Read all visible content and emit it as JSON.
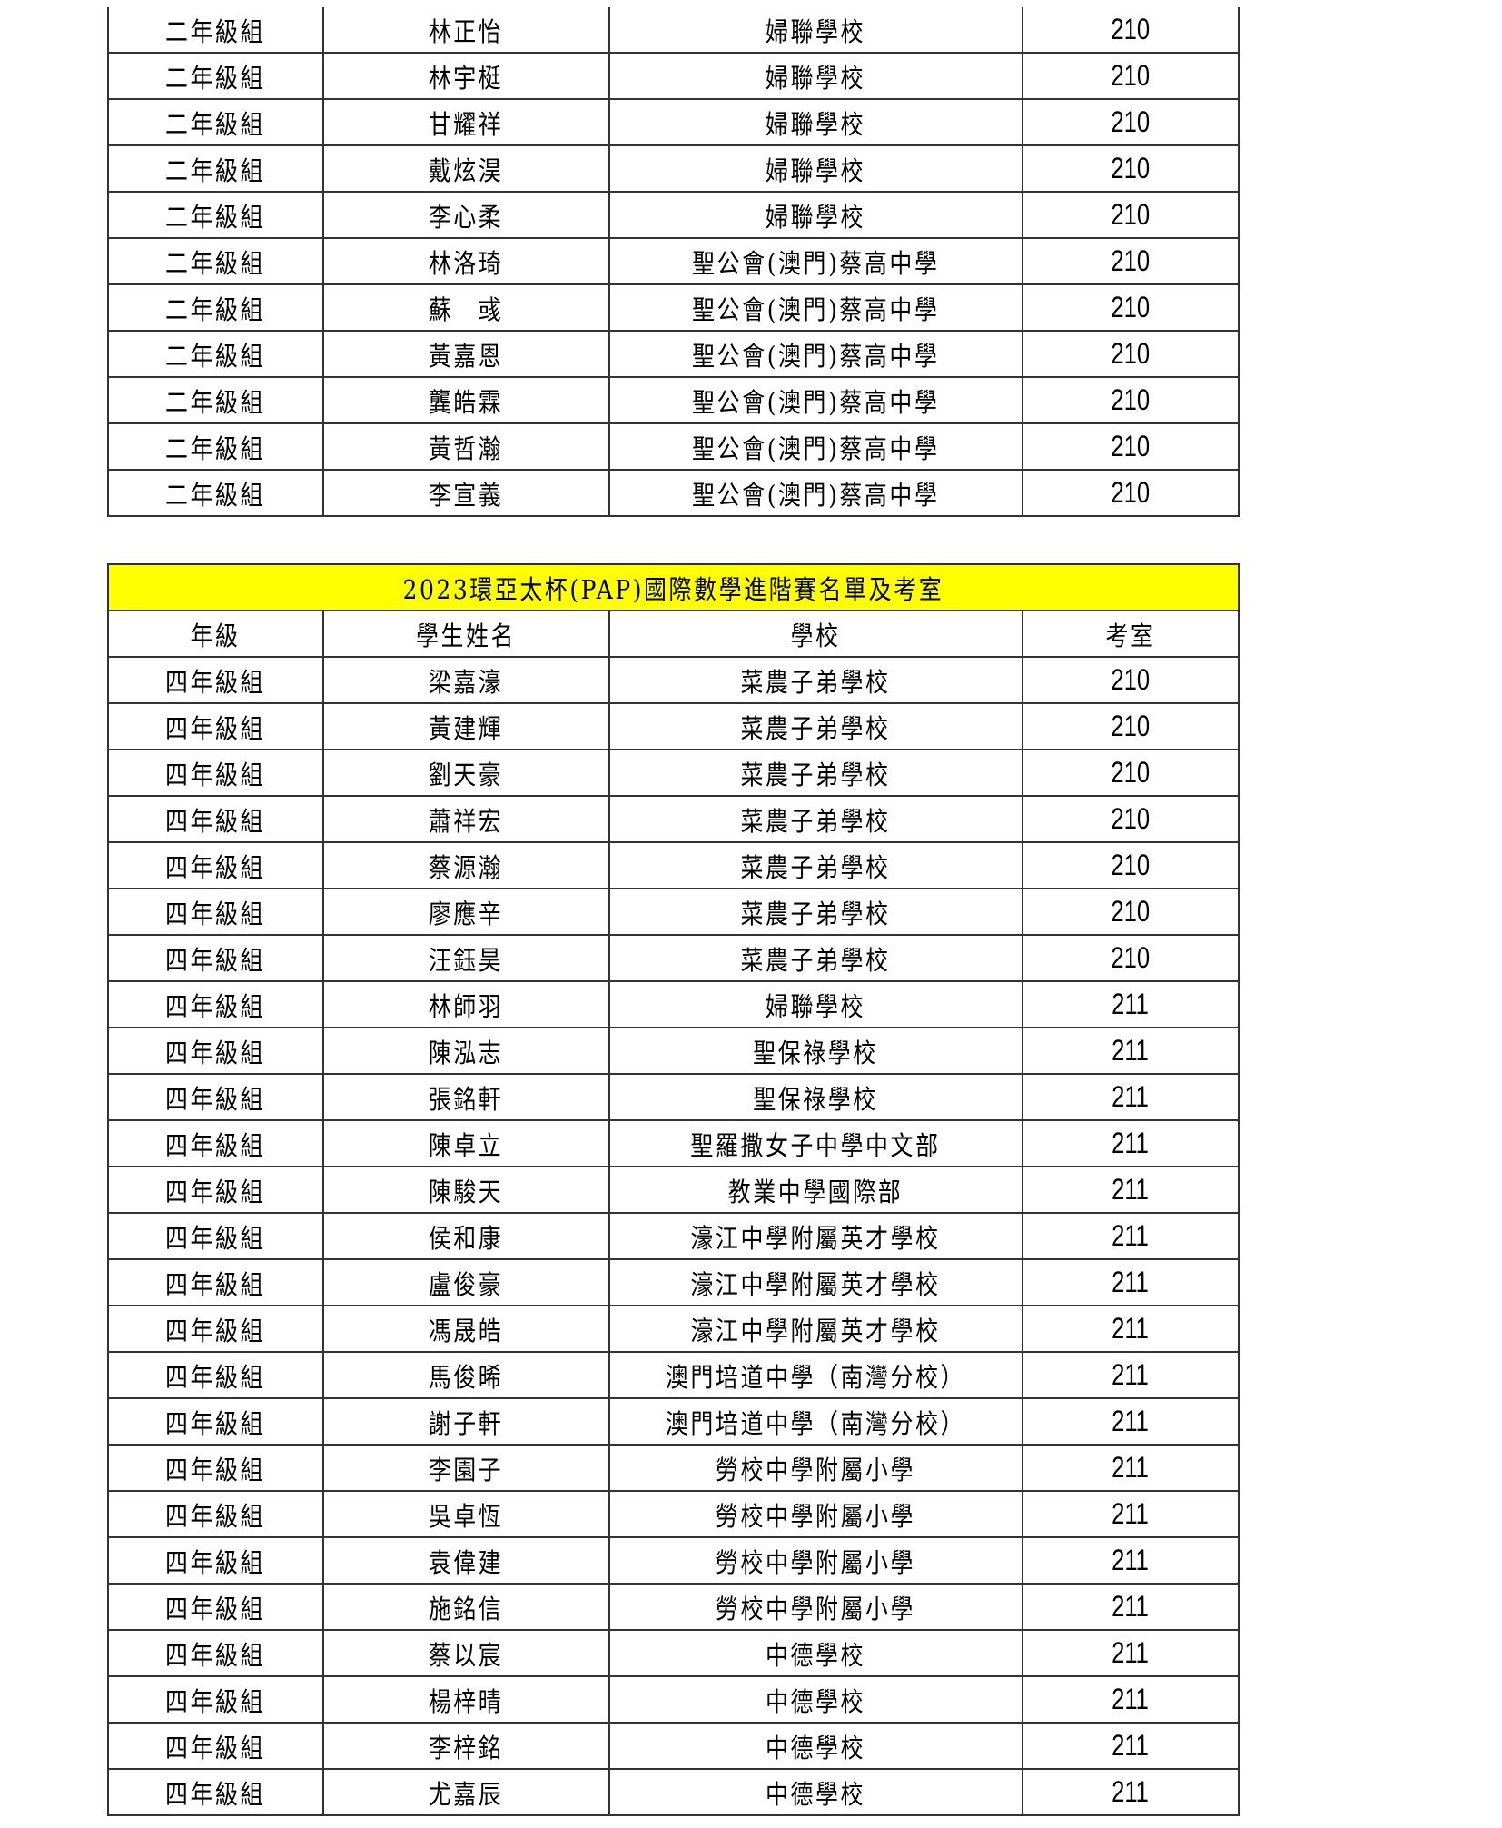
{
  "table1": {
    "rows": [
      [
        "二年級組",
        "林正怡",
        "婦聯學校",
        "210"
      ],
      [
        "二年級組",
        "林宇梃",
        "婦聯學校",
        "210"
      ],
      [
        "二年級組",
        "甘耀祥",
        "婦聯學校",
        "210"
      ],
      [
        "二年級組",
        "戴炫淏",
        "婦聯學校",
        "210"
      ],
      [
        "二年級組",
        "李心柔",
        "婦聯學校",
        "210"
      ],
      [
        "二年級組",
        "林洛琦",
        "聖公會(澳門)蔡高中學",
        "210"
      ],
      [
        "二年級組",
        "蘇　彧",
        "聖公會(澳門)蔡高中學",
        "210"
      ],
      [
        "二年級組",
        "黃嘉恩",
        "聖公會(澳門)蔡高中學",
        "210"
      ],
      [
        "二年級組",
        "龔皓霖",
        "聖公會(澳門)蔡高中學",
        "210"
      ],
      [
        "二年級組",
        "黃哲瀚",
        "聖公會(澳門)蔡高中學",
        "210"
      ],
      [
        "二年級組",
        "李宣義",
        "聖公會(澳門)蔡高中學",
        "210"
      ]
    ]
  },
  "table2": {
    "title": "2023環亞太杯(PAP)國際數學進階賽名單及考室",
    "title_bg": "#ffff00",
    "headers": [
      "年級",
      "學生姓名",
      "學校",
      "考室"
    ],
    "rows": [
      [
        "四年級組",
        "梁嘉濠",
        "菜農子弟學校",
        "210"
      ],
      [
        "四年級組",
        "黃建輝",
        "菜農子弟學校",
        "210"
      ],
      [
        "四年級組",
        "劉天豪",
        "菜農子弟學校",
        "210"
      ],
      [
        "四年級組",
        "蕭祥宏",
        "菜農子弟學校",
        "210"
      ],
      [
        "四年級組",
        "蔡源瀚",
        "菜農子弟學校",
        "210"
      ],
      [
        "四年級組",
        "廖應辛",
        "菜農子弟學校",
        "210"
      ],
      [
        "四年級組",
        "汪鈺昊",
        "菜農子弟學校",
        "210"
      ],
      [
        "四年級組",
        "林師羽",
        "婦聯學校",
        "211"
      ],
      [
        "四年級組",
        "陳泓志",
        "聖保祿學校",
        "211"
      ],
      [
        "四年級組",
        "張銘軒",
        "聖保祿學校",
        "211"
      ],
      [
        "四年級組",
        "陳卓立",
        "聖羅撒女子中學中文部",
        "211"
      ],
      [
        "四年級組",
        "陳駿天",
        "教業中學國際部",
        "211"
      ],
      [
        "四年級組",
        "侯和康",
        "濠江中學附屬英才學校",
        "211"
      ],
      [
        "四年級組",
        "盧俊豪",
        "濠江中學附屬英才學校",
        "211"
      ],
      [
        "四年級組",
        "馮晟皓",
        "濠江中學附屬英才學校",
        "211"
      ],
      [
        "四年級組",
        "馬俊晞",
        "澳門培道中學（南灣分校）",
        "211"
      ],
      [
        "四年級組",
        "謝子軒",
        "澳門培道中學（南灣分校）",
        "211"
      ],
      [
        "四年級組",
        "李園子",
        "勞校中學附屬小學",
        "211"
      ],
      [
        "四年級組",
        "吳卓恆",
        "勞校中學附屬小學",
        "211"
      ],
      [
        "四年級組",
        "袁偉建",
        "勞校中學附屬小學",
        "211"
      ],
      [
        "四年級組",
        "施銘信",
        "勞校中學附屬小學",
        "211"
      ],
      [
        "四年級組",
        "蔡以宸",
        "中德學校",
        "211"
      ],
      [
        "四年級組",
        "楊梓晴",
        "中德學校",
        "211"
      ],
      [
        "四年級組",
        "李梓銘",
        "中德學校",
        "211"
      ],
      [
        "四年級組",
        "尤嘉辰",
        "中德學校",
        "211"
      ]
    ]
  }
}
